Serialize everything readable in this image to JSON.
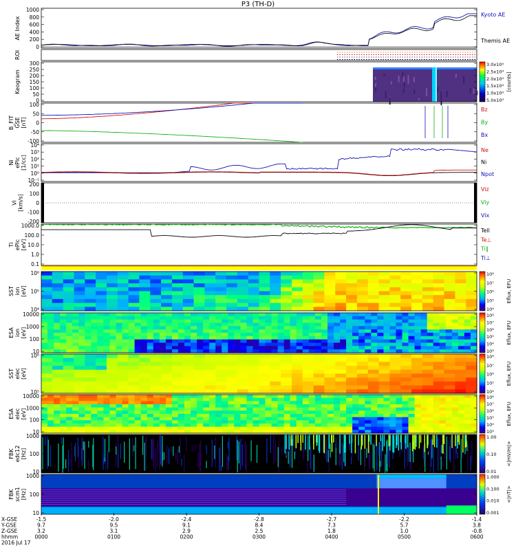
{
  "title": "P3 (TH-D)",
  "colors": {
    "blue": "#1010b4",
    "red": "#d01010",
    "green": "#10b010",
    "black": "#000000",
    "orange": "#ff7f0e",
    "violet": "#7c40c0"
  },
  "panels": [
    {
      "id": "ae",
      "label": [
        "AE Index"
      ],
      "right": [
        {
          "t": "Kyoto AE",
          "c": "blue"
        },
        {
          "t": "Themis AE",
          "c": "black"
        }
      ],
      "ticks": [
        "1000",
        "800",
        "600",
        "400",
        "200",
        "0"
      ]
    },
    {
      "id": "roi",
      "label": [
        "ROI"
      ],
      "right": [],
      "ticks": []
    },
    {
      "id": "keo",
      "label": [
        "Keogram"
      ],
      "right": [],
      "ticks": [
        "300",
        "250",
        "200",
        "150",
        "100",
        "50",
        "0"
      ],
      "colorbar": {
        "ticks": [
          "3.0x10⁴",
          "2.5x10⁴",
          "2.0x10⁴",
          "1.5x10⁴",
          "1.0x10⁴",
          "5.0x10³"
        ],
        "unit": "[counts]"
      }
    },
    {
      "id": "bfit",
      "label": [
        "B_FIT",
        "GSE",
        "[nT]"
      ],
      "right": [
        {
          "t": "Bz",
          "c": "red"
        },
        {
          "t": "By",
          "c": "green"
        },
        {
          "t": "Bx",
          "c": "blue"
        }
      ],
      "ticks": [
        "100",
        "50",
        "0",
        "-50",
        "-100"
      ]
    },
    {
      "id": "ni",
      "label": [
        "Ni",
        "ePlc",
        "[1/cc]"
      ],
      "right": [
        {
          "t": "Ne",
          "c": "red"
        },
        {
          "t": "Ni",
          "c": "black"
        },
        {
          "t": "Npot",
          "c": "blue"
        }
      ],
      "ticks": [
        "10⁴",
        "10³",
        "10²",
        "10¹",
        "10⁰",
        "10⁻¹"
      ]
    },
    {
      "id": "vi",
      "label": [
        "Vi",
        "[km/s]"
      ],
      "right": [
        {
          "t": "Viz",
          "c": "red"
        },
        {
          "t": "Viy",
          "c": "green"
        },
        {
          "t": "Vix",
          "c": "blue"
        }
      ],
      "ticks": [
        "200",
        "100",
        "0",
        "-100",
        "-200"
      ]
    },
    {
      "id": "ti",
      "label": [
        "Ti",
        "ePlc",
        "[eV]"
      ],
      "right": [
        {
          "t": "Tell",
          "c": "black"
        },
        {
          "t": "Te⊥",
          "c": "red"
        },
        {
          "t": "Ti‖",
          "c": "green"
        },
        {
          "t": "Ti⊥",
          "c": "blue"
        }
      ],
      "ticks": [
        "1000.0",
        "100.0",
        "10.0",
        "1.0",
        "0.1"
      ]
    },
    {
      "id": "sst1",
      "label": [
        "SST",
        "ion",
        "[eV]"
      ],
      "right": [],
      "ticks": [
        "10⁶",
        "10⁵",
        "10⁴"
      ],
      "colorbar": {
        "ticks": [
          "10⁸",
          "10⁷",
          "10⁶",
          "10⁵",
          "10⁴"
        ],
        "unit": "Eflux, EFU"
      }
    },
    {
      "id": "esa1",
      "label": [
        "ESA",
        "ion",
        "[eV]"
      ],
      "right": [],
      "ticks": [
        "10000",
        "1000",
        "100",
        "10"
      ],
      "colorbar": {
        "ticks": [
          "10⁸",
          "10⁷",
          "10⁶",
          "10⁵",
          "10⁴",
          "10³"
        ],
        "unit": "Eflux, EFU"
      }
    },
    {
      "id": "sst2",
      "label": [
        "SST",
        "elec",
        "[eV]"
      ],
      "right": [],
      "ticks": [
        "10⁶",
        "10⁵"
      ],
      "colorbar": {
        "ticks": [
          "10⁸",
          "10⁷",
          "10⁶",
          "10⁵",
          "10⁴"
        ],
        "unit": "Eflux, EFU"
      }
    },
    {
      "id": "esa2",
      "label": [
        "ESA",
        "elec",
        "[eV]"
      ],
      "right": [],
      "ticks": [
        "10000",
        "1000",
        "100",
        "10"
      ],
      "colorbar": {
        "ticks": [
          "10⁸",
          "10⁷",
          "10⁶",
          "10⁵",
          "10⁴",
          "10³"
        ],
        "unit": "Eflux, EFU"
      }
    },
    {
      "id": "fbk1",
      "label": [
        "FBK",
        "edc12",
        "[Hz]"
      ],
      "right": [],
      "ticks": [
        "1000",
        "100",
        "10"
      ],
      "colorbar": {
        "ticks": [
          "1.00",
          "0.10",
          "0.01"
        ],
        "unit": "<|mV/m|>"
      }
    },
    {
      "id": "fbk2",
      "label": [
        "FBK",
        "scm1",
        "[Hz]"
      ],
      "right": [],
      "ticks": [
        "1000",
        "100",
        "10"
      ],
      "colorbar": {
        "ticks": [
          "1.000",
          "0.100",
          "0.010",
          "0.001"
        ],
        "unit": "<|nT|>"
      }
    }
  ],
  "xaxis": {
    "rows": [
      {
        "label": "X-GSE",
        "values": [
          "-1.5",
          "-2.0",
          "-2.4",
          "-2.8",
          "-2.7",
          "-2.2",
          "-1.4"
        ]
      },
      {
        "label": "Y-GSE",
        "values": [
          "9.7",
          "9.5",
          "9.1",
          "8.4",
          "7.3",
          "5.7",
          "3.8"
        ]
      },
      {
        "label": "Z-GSE",
        "values": [
          "3.2",
          "3.1",
          "2.9",
          "2.5",
          "1.8",
          "1.0",
          "-0.8"
        ]
      },
      {
        "label": "hhmm",
        "values": [
          "0000",
          "0100",
          "0200",
          "0300",
          "0400",
          "0500",
          "0600"
        ]
      }
    ],
    "date": "2016 Jul 17"
  }
}
